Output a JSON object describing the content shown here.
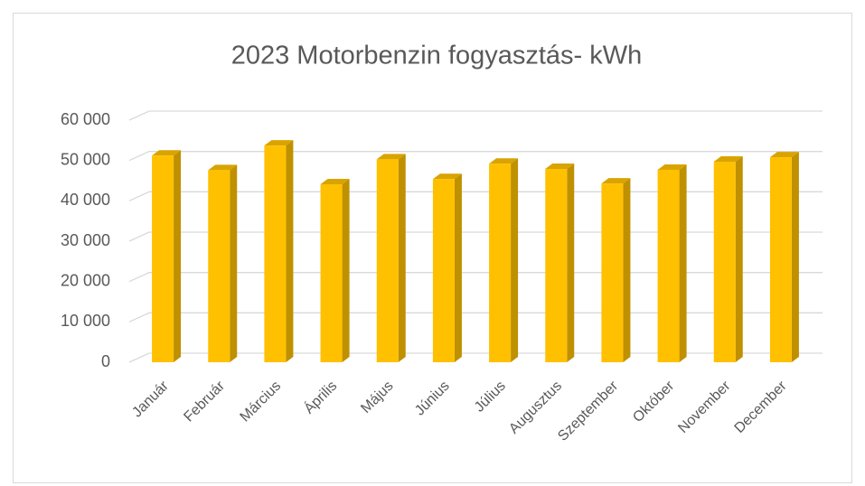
{
  "chart_data": {
    "type": "bar3d",
    "title": "2023 Motorbenzin fogyasztás- kWh",
    "categories": [
      "Január",
      "Február",
      "Március",
      "Április",
      "Május",
      "Június",
      "Július",
      "Augusztus",
      "Szeptember",
      "Október",
      "November",
      "December"
    ],
    "values": [
      51200,
      47600,
      53700,
      44100,
      50300,
      45400,
      49200,
      47900,
      44300,
      47700,
      49700,
      50800
    ],
    "color": "#ffc000",
    "ylim": [
      0,
      60000
    ],
    "yticks": [
      0,
      {
        "value": 10000,
        "label": "10 000"
      },
      {
        "value": 20000,
        "label": "20 000"
      },
      {
        "value": 30000,
        "label": "30 000"
      },
      {
        "value": 40000,
        "label": "40 000"
      },
      {
        "value": 50000,
        "label": "50 000"
      },
      {
        "value": 60000,
        "label": "60 000"
      }
    ],
    "grid": true
  }
}
